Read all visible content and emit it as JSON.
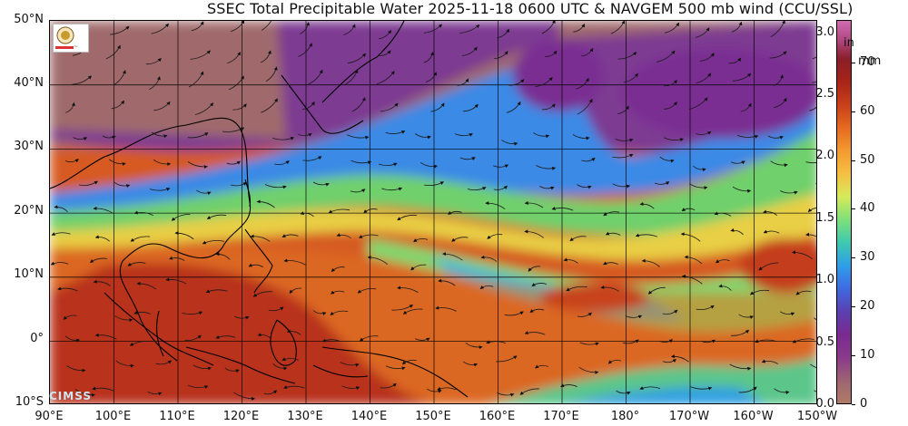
{
  "title": "SSEC Total Precipitable Water  2025-11-18 0600 UTC & NAVGEM 500 mb wind (CCU/SSL)",
  "lat_labels": [
    "50°N",
    "40°N",
    "30°N",
    "20°N",
    "10°N",
    "0°",
    "10°S"
  ],
  "lon_labels": [
    "90°E",
    "100°E",
    "110°E",
    "120°E",
    "130°E",
    "140°E",
    "150°E",
    "160°E",
    "170°E",
    "180°",
    "170°W",
    "160°W",
    "150°W"
  ],
  "colorbar": {
    "left_unit": "in",
    "right_unit": "mm",
    "in_ticks": [
      "3.0",
      "2.5",
      "2.0",
      "1.5",
      "1.0",
      "0.5",
      "0.0"
    ],
    "mm_ticks": [
      "70",
      "60",
      "50",
      "40",
      "30",
      "20",
      "10",
      "0"
    ]
  },
  "watermark": "CIMSS",
  "icons": {
    "logo": "institution-seal-icon"
  },
  "colors": {
    "dry_land": "#a56f6a",
    "dry_purple": "#8a3f96",
    "blue": "#3a8ae6",
    "green": "#73d66a",
    "yellow": "#e6d04a",
    "orange": "#eb8c2c",
    "moist_red": "#c04420"
  }
}
